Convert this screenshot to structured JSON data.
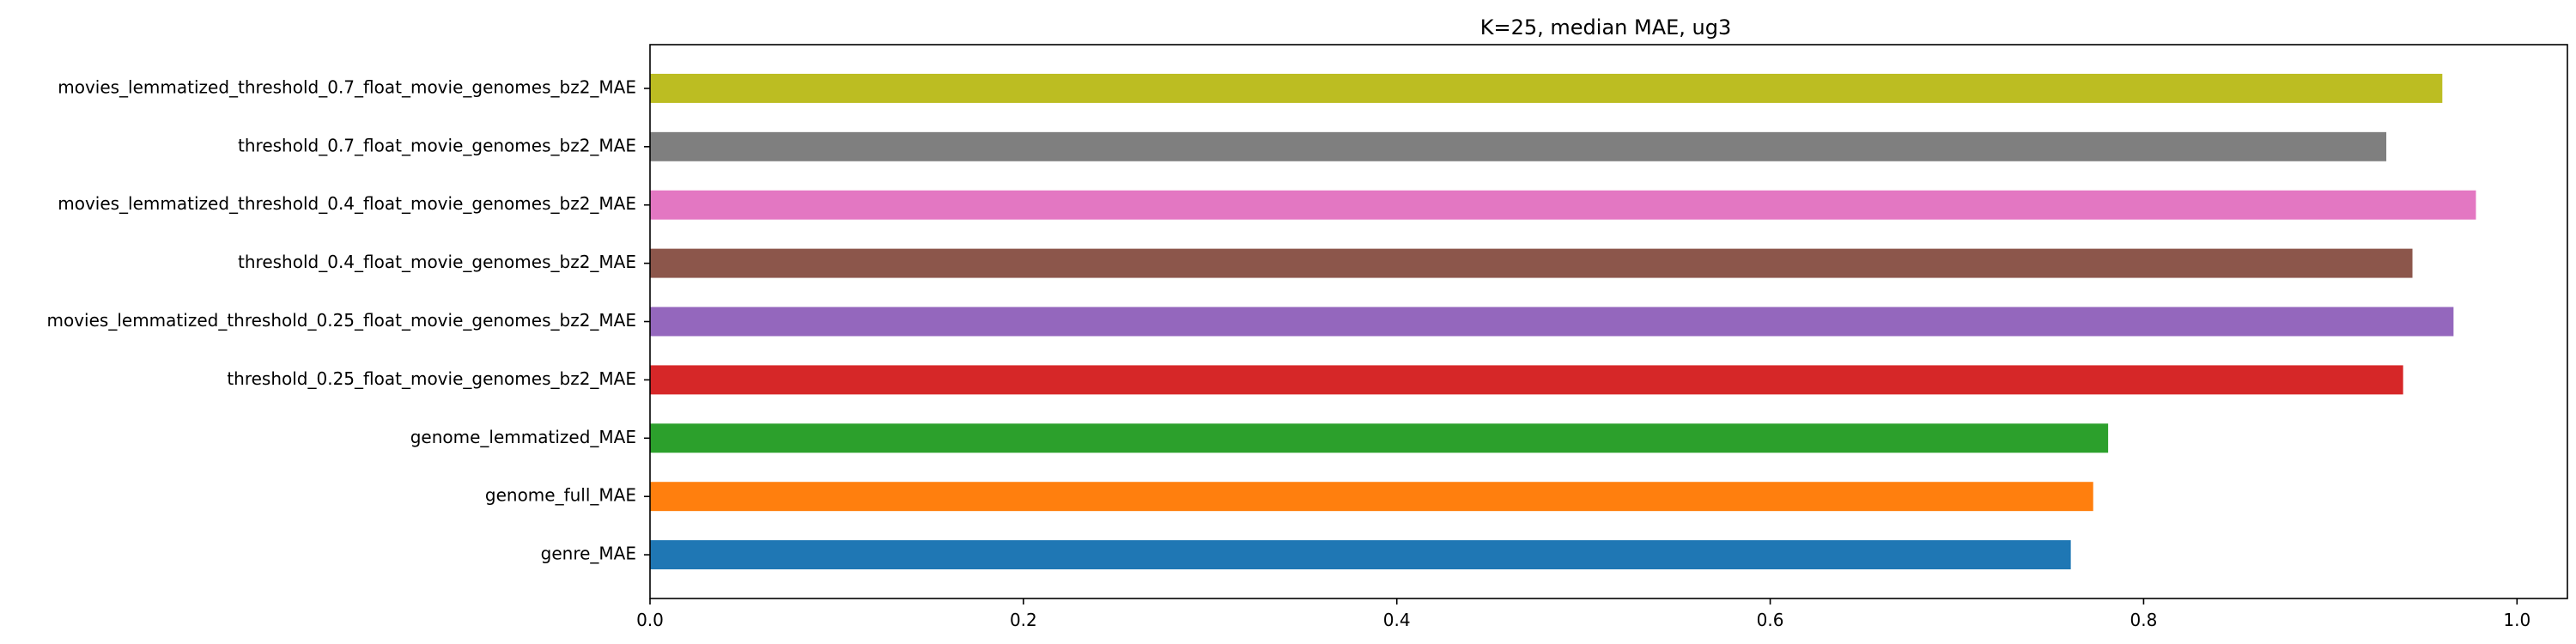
{
  "chart_data": {
    "type": "bar",
    "orientation": "horizontal",
    "title": "K=25, median MAE, ug3",
    "xlabel": "",
    "ylabel": "",
    "xlim": [
      0.0,
      1.027
    ],
    "x_ticks": [
      "0.0",
      "0.2",
      "0.4",
      "0.6",
      "0.8",
      "1.0"
    ],
    "x_tick_values": [
      0.0,
      0.2,
      0.4,
      0.6,
      0.8,
      1.0
    ],
    "grid": false,
    "categories": [
      "genre_MAE",
      "genome_full_MAE",
      "genome_lemmatized_MAE",
      "threshold_0.25_float_movie_genomes_bz2_MAE",
      "movies_lemmatized_threshold_0.25_float_movie_genomes_bz2_MAE",
      "threshold_0.4_float_movie_genomes_bz2_MAE",
      "movies_lemmatized_threshold_0.4_float_movie_genomes_bz2_MAE",
      "threshold_0.7_float_movie_genomes_bz2_MAE",
      "movies_lemmatized_threshold_0.7_float_movie_genomes_bz2_MAE"
    ],
    "values": [
      0.761,
      0.773,
      0.781,
      0.939,
      0.966,
      0.944,
      0.978,
      0.93,
      0.96
    ],
    "colors": [
      "#1f77b4",
      "#ff7f0e",
      "#2ca02c",
      "#d62728",
      "#9467bd",
      "#8c564b",
      "#e377c2",
      "#7f7f7f",
      "#bcbd22"
    ]
  }
}
